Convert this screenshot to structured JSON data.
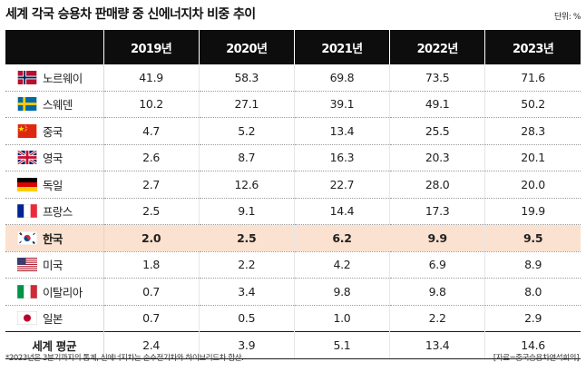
{
  "title": "세계 각국 승용차 판매량 중 신에너지차 비중 추이",
  "unit": "단위: %",
  "years": [
    "2019년",
    "2020년",
    "2021년",
    "2022년",
    "2023년"
  ],
  "rows": [
    {
      "country": "노르웨이",
      "flag": "norway-flag-icon",
      "values": [
        "41.9",
        "58.3",
        "69.8",
        "73.5",
        "71.6"
      ]
    },
    {
      "country": "스웨덴",
      "flag": "sweden-flag-icon",
      "values": [
        "10.2",
        "27.1",
        "39.1",
        "49.1",
        "50.2"
      ]
    },
    {
      "country": "중국",
      "flag": "china-flag-icon",
      "values": [
        "4.7",
        "5.2",
        "13.4",
        "25.5",
        "28.3"
      ]
    },
    {
      "country": "영국",
      "flag": "uk-flag-icon",
      "values": [
        "2.6",
        "8.7",
        "16.3",
        "20.3",
        "20.1"
      ]
    },
    {
      "country": "독일",
      "flag": "germany-flag-icon",
      "values": [
        "2.7",
        "12.6",
        "22.7",
        "28.0",
        "20.0"
      ]
    },
    {
      "country": "프랑스",
      "flag": "france-flag-icon",
      "values": [
        "2.5",
        "9.1",
        "14.4",
        "17.3",
        "19.9"
      ]
    },
    {
      "country": "한국",
      "flag": "korea-flag-icon",
      "values": [
        "2.0",
        "2.5",
        "6.2",
        "9.9",
        "9.5"
      ]
    },
    {
      "country": "미국",
      "flag": "usa-flag-icon",
      "values": [
        "1.8",
        "2.2",
        "4.2",
        "6.9",
        "8.9"
      ]
    },
    {
      "country": "이탈리아",
      "flag": "italy-flag-icon",
      "values": [
        "0.7",
        "3.4",
        "9.8",
        "9.8",
        "8.0"
      ]
    },
    {
      "country": "일본",
      "flag": "japan-flag-icon",
      "values": [
        "0.7",
        "0.5",
        "1.0",
        "2.2",
        "2.9"
      ]
    }
  ],
  "total": {
    "label": "세계 평균",
    "values": [
      "2.4",
      "3.9",
      "5.1",
      "13.4",
      "14.6"
    ]
  },
  "note": "*2023년은 3분기까지의 통계, 신에너지차는 순수전기차와 하이브리드차 합산.",
  "source": "[자료=중국승용차연석회의]",
  "colors": {
    "header_bg": "#0d0d0d",
    "highlight_row": "#fbe1cf"
  }
}
